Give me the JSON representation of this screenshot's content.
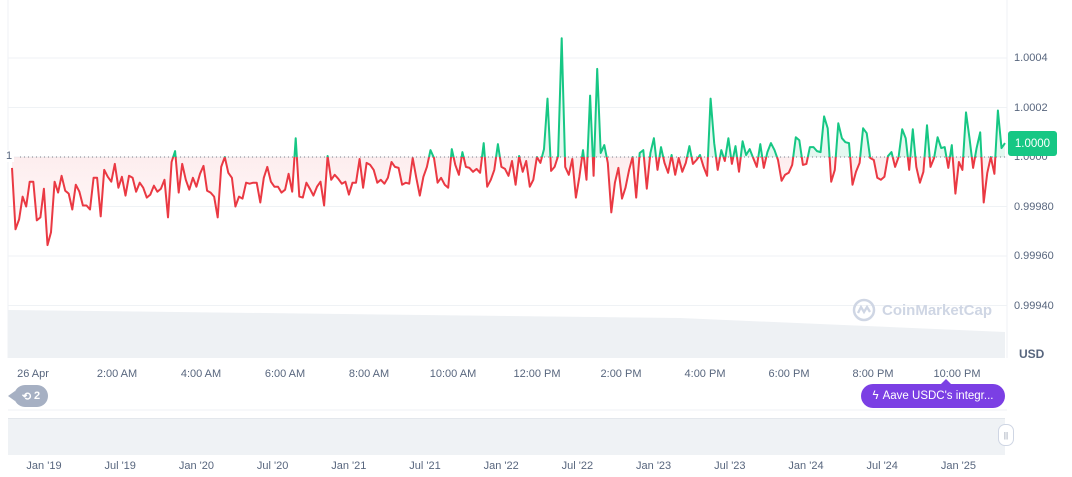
{
  "chart_data": {
    "type": "line",
    "title": "",
    "xlabel": "",
    "ylabel": "",
    "currency_label": "USD",
    "baseline": 1,
    "baseline_label": "1",
    "current_price": "1.0000",
    "ylim": [
      0.9993,
      1.0005
    ],
    "y_ticks": [
      "1.0004",
      "1.0002",
      "1.0000",
      "0.99980",
      "0.99960",
      "0.99940"
    ],
    "y_tick_values": [
      1.0004,
      1.0002,
      1.0,
      0.9998,
      0.9996,
      0.9994
    ],
    "x_ticks": [
      "26 Apr",
      "2:00 AM",
      "4:00 AM",
      "6:00 AM",
      "8:00 AM",
      "10:00 AM",
      "12:00 PM",
      "2:00 PM",
      "4:00 PM",
      "6:00 PM",
      "8:00 PM",
      "10:00 PM"
    ],
    "grid": true,
    "colors": {
      "up": "#16c784",
      "down": "#ea3943",
      "news": "#7b3fe4",
      "event": "#a6b0c3"
    },
    "values": [
      0.999956,
      0.999708,
      0.999748,
      0.99984,
      0.9998,
      0.9999,
      0.9999,
      0.999744,
      0.999756,
      0.999872,
      0.999644,
      0.999696,
      0.9999,
      0.999856,
      0.999924,
      0.999864,
      0.999852,
      0.999788,
      0.999888,
      0.99986,
      0.999804,
      0.999804,
      0.999788,
      0.999916,
      0.999916,
      0.99976,
      0.999948,
      0.99992,
      0.9999,
      0.999972,
      0.999876,
      0.99992,
      0.999844,
      0.999924,
      0.999916,
      0.99986,
      0.999896,
      0.999876,
      0.999836,
      0.999848,
      0.999884,
      0.99986,
      0.999872,
      0.999908,
      0.999756,
      0.99998,
      1.000024,
      0.999856,
      0.999972,
      0.999908,
      0.999868,
      0.999916,
      0.99988,
      0.999932,
      0.999964,
      0.999864,
      0.999856,
      0.99984,
      0.999756,
      0.99996,
      1.0,
      0.999936,
      0.999916,
      0.9998,
      0.99984,
      0.999832,
      0.999896,
      0.999892,
      0.999896,
      0.999896,
      0.999816,
      0.999916,
      0.99996,
      0.9999,
      0.99988,
      0.99988,
      0.999856,
      0.999868,
      0.999932,
      0.99986,
      1.000076,
      0.99984,
      0.999836,
      0.999896,
      0.999872,
      0.999844,
      0.99988,
      0.9999,
      0.999804,
      1.000004,
      0.999908,
      0.999928,
      0.999912,
      0.999892,
      0.9999,
      0.999848,
      0.999896,
      0.999896,
      0.999992,
      0.999876,
      0.999976,
      0.999968,
      0.999948,
      0.999896,
      0.999908,
      0.999892,
      0.999916,
      0.99998,
      0.99996,
      0.999956,
      0.999888,
      0.999896,
      0.999892,
      0.999996,
      0.999916,
      0.999844,
      0.99992,
      0.99996,
      1.000028,
      0.999996,
      0.999896,
      0.999916,
      0.999888,
      0.999876,
      1.000032,
      0.999968,
      0.999928,
      1.00002,
      0.99996,
      0.999956,
      0.99994,
      0.999952,
      0.999936,
      1.000056,
      0.99988,
      0.999908,
      0.999948,
      1.000052,
      0.99996,
      0.999952,
      0.999924,
      0.999984,
      0.999888,
      1.000004,
      0.99994,
      0.999984,
      0.99988,
      0.999908,
      1.0,
      0.999976,
      1.000032,
      1.000236,
      0.999944,
      0.99996,
      1.000004,
      1.00048,
      0.99996,
      0.999928,
      0.999992,
      0.999836,
      0.99992,
      1.000028,
      0.999908,
      1.000248,
      0.999924,
      1.000356,
      1.000016,
      1.000048,
      0.999976,
      0.999776,
      0.999896,
      0.999956,
      0.999832,
      0.999876,
      0.999948,
      1.0,
      0.999836,
      1.000016,
      1.000028,
      0.999872,
      1.000016,
      1.000076,
      0.999948,
      1.00004,
      0.999976,
      0.999936,
      1.000008,
      0.999928,
      0.999996,
      0.99994,
      0.999976,
      1.000044,
      0.999972,
      0.999988,
      1.000008,
      0.99996,
      0.999924,
      1.000236,
      1.000056,
      0.999948,
      1.000028,
      0.999984,
      1.000076,
      0.999972,
      1.000044,
      0.99994,
      1.000064,
      1.000008,
      1.000032,
      0.999996,
      0.99996,
      1.000052,
      0.999956,
      1.00002,
      1.000056,
      1.000028,
      0.999988,
      0.999904,
      0.999928,
      0.999936,
      0.999968,
      1.00008,
      1.000068,
      0.999968,
      0.999972,
      1.00004,
      1.00004,
      1.000024,
      1.00002,
      1.000164,
      1.000116,
      0.9999,
      0.999948,
      1.000136,
      1.000076,
      1.00006,
      1.000056,
      0.999888,
      0.99994,
      0.999976,
      1.000116,
      1.000096,
      0.999996,
      0.999988,
      0.999916,
      0.999908,
      0.99992,
      1.000004,
      1.00002,
      0.99996,
      1.0,
      1.000112,
      1.000076,
      0.999948,
      1.000112,
      0.99996,
      0.999896,
      0.99994,
      1.000128,
      0.99996,
      0.999996,
      1.00008,
      1.000036,
      1.00004,
      0.999956,
      1.000048,
      0.999852,
      0.99998,
      0.999948,
      1.00018,
      1.000076,
      0.999956,
      1.000036,
      1.0001,
      0.999816,
      0.999936,
      1.0,
      0.999932,
      1.000188,
      1.000036,
      1.000056
    ]
  },
  "navigator": {
    "labels": [
      "Jan '19",
      "Jul '19",
      "Jan '20",
      "Jul '20",
      "Jan '21",
      "Jul '21",
      "Jan '22",
      "Jul '22",
      "Jan '23",
      "Jul '23",
      "Jan '24",
      "Jul '24",
      "Jan '25"
    ]
  },
  "events": {
    "count": "2",
    "icon": "history-icon"
  },
  "news": {
    "label": "Aave USDC's integr...",
    "icon": "lightning-icon"
  },
  "watermark": "CoinMarketCap"
}
